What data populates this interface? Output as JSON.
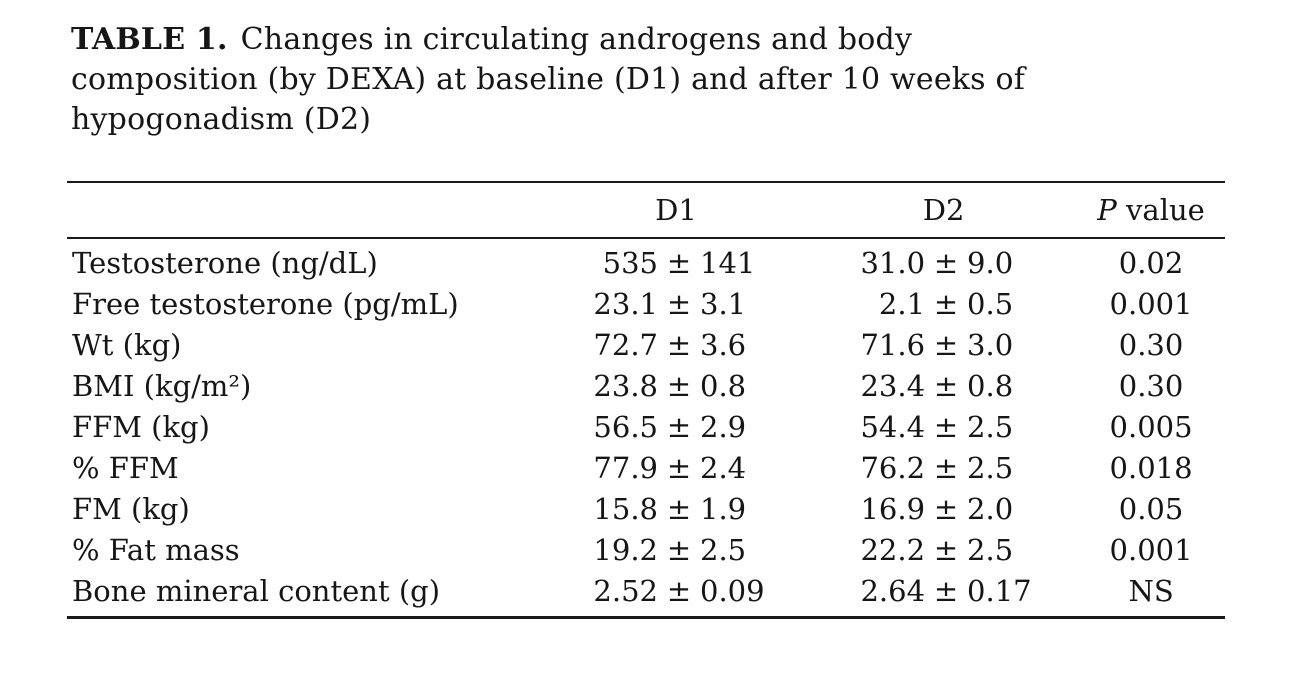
{
  "page": {
    "background_color": "#ffffff",
    "text_color": "#161616"
  },
  "caption": {
    "label": "TABLE 1.",
    "lines": [
      "Changes in circulating androgens and body",
      "composition (by DEXA) at baseline (D1) and after 10 weeks of",
      "hypogonadism (D2)"
    ]
  },
  "table": {
    "symbols": {
      "pm": "±"
    },
    "header": {
      "d1": "D1",
      "d2": "D2",
      "p_prefix": "P",
      "p_suffix": "value"
    },
    "rows": [
      {
        "label": "Testosterone (ng/dL)",
        "d1_mean": "535",
        "d1_sd": "141",
        "d2_mean": "31.0",
        "d2_sd": "9.0",
        "p": "0.02"
      },
      {
        "label": "Free testosterone (pg/mL)",
        "d1_mean": "23.1",
        "d1_sd": "3.1",
        "d2_mean": "2.1",
        "d2_sd": "0.5",
        "p": "0.001"
      },
      {
        "label": "Wt (kg)",
        "d1_mean": "72.7",
        "d1_sd": "3.6",
        "d2_mean": "71.6",
        "d2_sd": "3.0",
        "p": "0.30"
      },
      {
        "label": "BMI (kg/m²)",
        "d1_mean": "23.8",
        "d1_sd": "0.8",
        "d2_mean": "23.4",
        "d2_sd": "0.8",
        "p": "0.30"
      },
      {
        "label": "FFM (kg)",
        "d1_mean": "56.5",
        "d1_sd": "2.9",
        "d2_mean": "54.4",
        "d2_sd": "2.5",
        "p": "0.005"
      },
      {
        "label": "% FFM",
        "d1_mean": "77.9",
        "d1_sd": "2.4",
        "d2_mean": "76.2",
        "d2_sd": "2.5",
        "p": "0.018"
      },
      {
        "label": "FM (kg)",
        "d1_mean": "15.8",
        "d1_sd": "1.9",
        "d2_mean": "16.9",
        "d2_sd": "2.0",
        "p": "0.05"
      },
      {
        "label": "% Fat mass",
        "d1_mean": "19.2",
        "d1_sd": "2.5",
        "d2_mean": "22.2",
        "d2_sd": "2.5",
        "p": "0.001"
      },
      {
        "label": "Bone mineral content (g)",
        "d1_mean": "2.52",
        "d1_sd": "0.09",
        "d2_mean": "2.64",
        "d2_sd": "0.17",
        "p": "NS"
      }
    ]
  }
}
